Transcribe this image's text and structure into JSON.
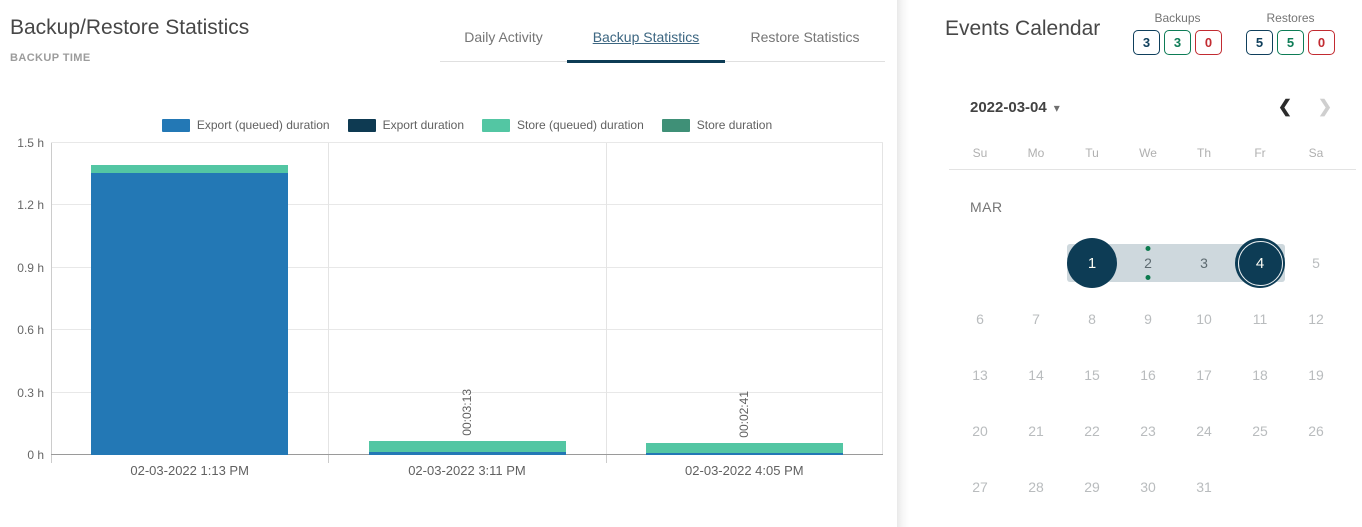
{
  "left_panel": {
    "title": "Backup/Restore Statistics",
    "subtitle": "BACKUP TIME",
    "tabs": [
      {
        "label": "Daily Activity",
        "active": false
      },
      {
        "label": "Backup Statistics",
        "active": true
      },
      {
        "label": "Restore Statistics",
        "active": false
      }
    ]
  },
  "chart_data": {
    "type": "bar",
    "stacked": true,
    "title": "BACKUP TIME",
    "categories": [
      "02-03-2022 1:13 PM",
      "02-03-2022 3:11 PM",
      "02-03-2022 4:05 PM"
    ],
    "series": [
      {
        "name": "Export (queued) duration",
        "color": "#2378b5",
        "values": [
          1.355,
          0.014,
          0.012
        ]
      },
      {
        "name": "Export duration",
        "color": "#0e3a52",
        "values": [
          0,
          0,
          0
        ]
      },
      {
        "name": "Store (queued) duration",
        "color": "#53c6a3",
        "values": [
          0.038,
          0.054,
          0.045
        ]
      },
      {
        "name": "Store duration",
        "color": "#3f9077",
        "values": [
          0,
          0,
          0
        ]
      }
    ],
    "bar_labels": [
      "",
      "00:03:13",
      "00:02:41"
    ],
    "ylabel": "hours",
    "ylim": [
      0,
      1.5
    ],
    "yticks": [
      "0 h",
      "0.3 h",
      "0.6 h",
      "0.9 h",
      "1.2 h",
      "1.5 h"
    ],
    "grid": true,
    "legend_position": "top"
  },
  "calendar": {
    "title": "Events Calendar",
    "counters": [
      {
        "label": "Backups",
        "values": [
          {
            "value": "3",
            "color": "#0f3f5c"
          },
          {
            "value": "3",
            "color": "#0d7c56"
          },
          {
            "value": "0",
            "color": "#c22b31"
          }
        ]
      },
      {
        "label": "Restores",
        "values": [
          {
            "value": "5",
            "color": "#0f3f5c"
          },
          {
            "value": "5",
            "color": "#0d7c56"
          },
          {
            "value": "0",
            "color": "#c22b31"
          }
        ]
      }
    ],
    "selected_date": "2022-03-04",
    "dropdown_icon": "▾",
    "nav": {
      "prev_icon": "❮",
      "next_icon": "❯"
    },
    "weekdays": [
      "Su",
      "Mo",
      "Tu",
      "We",
      "Th",
      "Fr",
      "Sa"
    ],
    "month_label": "MAR",
    "weeks": [
      [
        null,
        null,
        {
          "d": 1,
          "state": "start"
        },
        {
          "d": 2,
          "state": "range",
          "events": true
        },
        {
          "d": 3,
          "state": "range"
        },
        {
          "d": 4,
          "state": "end"
        },
        {
          "d": 5,
          "state": "muted"
        }
      ],
      [
        {
          "d": 6,
          "state": "muted"
        },
        {
          "d": 7,
          "state": "muted"
        },
        {
          "d": 8,
          "state": "muted"
        },
        {
          "d": 9,
          "state": "muted"
        },
        {
          "d": 10,
          "state": "muted"
        },
        {
          "d": 11,
          "state": "muted"
        },
        {
          "d": 12,
          "state": "muted"
        }
      ],
      [
        {
          "d": 13,
          "state": "muted"
        },
        {
          "d": 14,
          "state": "muted"
        },
        {
          "d": 15,
          "state": "muted"
        },
        {
          "d": 16,
          "state": "muted"
        },
        {
          "d": 17,
          "state": "muted"
        },
        {
          "d": 18,
          "state": "muted"
        },
        {
          "d": 19,
          "state": "muted"
        }
      ],
      [
        {
          "d": 20,
          "state": "muted"
        },
        {
          "d": 21,
          "state": "muted"
        },
        {
          "d": 22,
          "state": "muted"
        },
        {
          "d": 23,
          "state": "muted"
        },
        {
          "d": 24,
          "state": "muted"
        },
        {
          "d": 25,
          "state": "muted"
        },
        {
          "d": 26,
          "state": "muted"
        }
      ],
      [
        {
          "d": 27,
          "state": "muted"
        },
        {
          "d": 28,
          "state": "muted"
        },
        {
          "d": 29,
          "state": "muted"
        },
        {
          "d": 30,
          "state": "muted"
        },
        {
          "d": 31,
          "state": "muted"
        },
        null,
        null
      ]
    ]
  },
  "colors": {
    "accent_navy": "#0d3c55",
    "range_band": "#ced8dd",
    "event_dot": "#0c7a4e",
    "tab_active_text": "#3c6681"
  }
}
